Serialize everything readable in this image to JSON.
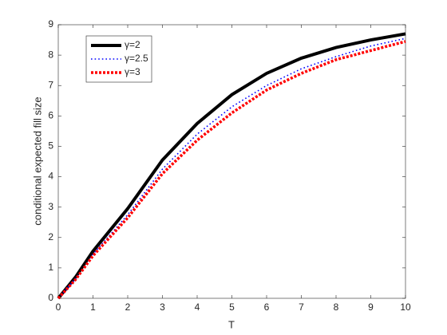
{
  "chart_data": {
    "type": "line",
    "xlabel": "T",
    "ylabel": "conditional expected fill size",
    "x": [
      0,
      0.5,
      1,
      2,
      3,
      4,
      5,
      6,
      7,
      8,
      9,
      10
    ],
    "series": [
      {
        "name": "γ=2",
        "color": "#000000",
        "style": "solid",
        "values": [
          0,
          0.7,
          1.55,
          2.95,
          4.55,
          5.75,
          6.7,
          7.4,
          7.9,
          8.25,
          8.5,
          8.7
        ]
      },
      {
        "name": "γ=2.5",
        "color": "#0000ff",
        "style": "dotted",
        "values": [
          0,
          0.65,
          1.45,
          2.75,
          4.25,
          5.4,
          6.3,
          7.0,
          7.55,
          7.95,
          8.3,
          8.55
        ]
      },
      {
        "name": "γ=3",
        "color": "#ff0000",
        "style": "dotted-thick",
        "values": [
          0,
          0.62,
          1.4,
          2.65,
          4.1,
          5.2,
          6.1,
          6.85,
          7.4,
          7.85,
          8.15,
          8.45
        ]
      }
    ],
    "xlim": [
      0,
      10
    ],
    "xticks": [
      0,
      1,
      2,
      3,
      4,
      5,
      6,
      7,
      8,
      9,
      10
    ],
    "ylim": [
      0,
      9
    ],
    "yticks": [
      0,
      1,
      2,
      3,
      4,
      5,
      6,
      7,
      8,
      9
    ],
    "legend": "upper left"
  }
}
